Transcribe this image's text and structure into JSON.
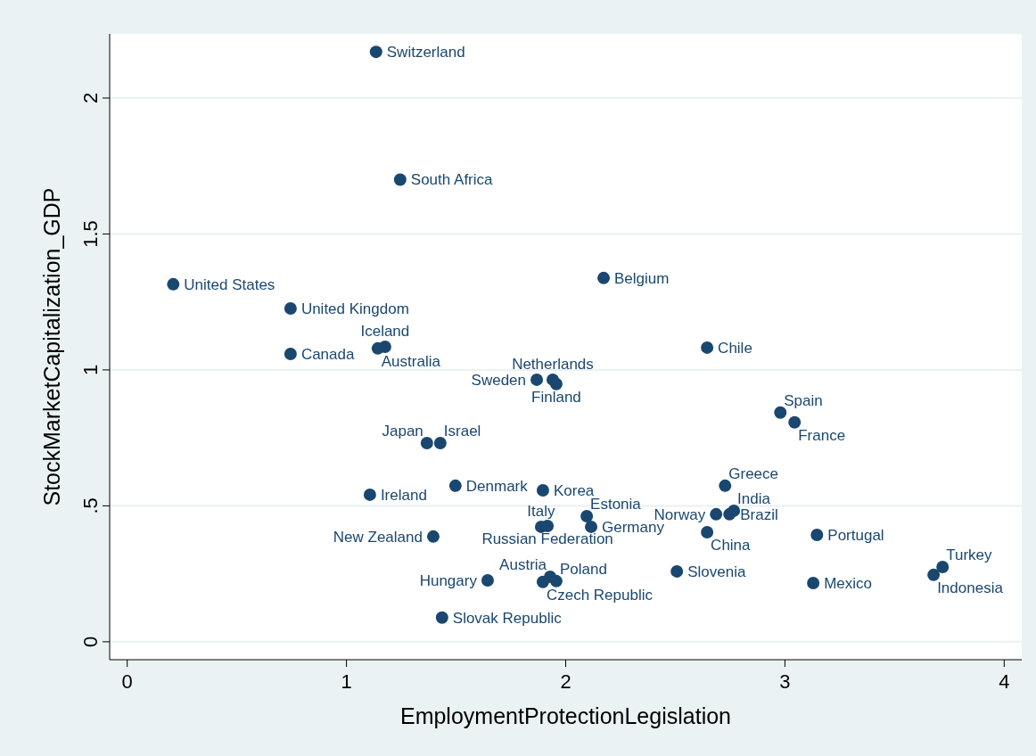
{
  "chart_data": {
    "type": "scatter",
    "xlabel": "EmploymentProtectionLegislation",
    "ylabel": "StockMarketCapitalization_GDP",
    "xlim": [
      -0.08,
      4.08
    ],
    "ylim": [
      -0.066,
      2.236
    ],
    "xticks": [
      0,
      1,
      2,
      3,
      4
    ],
    "yticks": [
      0,
      {
        "value": 0.5,
        "label": ".5"
      },
      1,
      1.5,
      2
    ],
    "grid": "y",
    "marker": "circle",
    "series": [
      {
        "color": "#1a476f",
        "x": [
          1.135,
          1.245,
          0.21,
          0.745,
          0.745,
          1.176,
          1.143,
          2.173,
          2.645,
          1.941,
          1.957,
          1.868,
          2.979,
          3.044,
          1.367,
          1.428,
          1.107,
          1.497,
          1.896,
          2.727,
          2.767,
          2.747,
          2.686,
          2.096,
          1.888,
          1.917,
          2.116,
          2.645,
          3.146,
          1.396,
          3.719,
          3.678,
          2.507,
          3.129,
          1.644,
          1.929,
          1.957,
          1.896,
          1.436
        ],
        "values": [
          2.17,
          1.7,
          1.315,
          1.226,
          1.059,
          1.085,
          1.079,
          1.338,
          1.082,
          0.964,
          0.948,
          0.964,
          0.843,
          0.807,
          0.731,
          0.731,
          0.541,
          0.574,
          0.557,
          0.574,
          0.482,
          0.469,
          0.469,
          0.462,
          0.423,
          0.426,
          0.423,
          0.403,
          0.393,
          0.387,
          0.275,
          0.246,
          0.259,
          0.216,
          0.226,
          0.239,
          0.223,
          0.22,
          0.089
        ],
        "value_labels": [
          "Switzerland",
          "South Africa",
          "United States",
          "United Kingdom",
          "Canada",
          "Iceland",
          "Australia",
          "Belgium",
          "Chile",
          "Netherlands",
          "Finland",
          "Sweden",
          "Spain",
          "France",
          "Japan",
          "Israel",
          "Ireland",
          "Denmark",
          "Korea",
          "Greece",
          "India",
          "Brazil",
          "Norway",
          "Estonia",
          "Italy",
          "Russian Federation",
          "Germany",
          "China",
          "Portugal",
          "New Zealand",
          "Turkey",
          "Indonesia",
          "Slovenia",
          "Mexico",
          "Hungary",
          "Austria",
          "Poland",
          "Czech Republic",
          "Slovak Republic"
        ]
      }
    ]
  }
}
